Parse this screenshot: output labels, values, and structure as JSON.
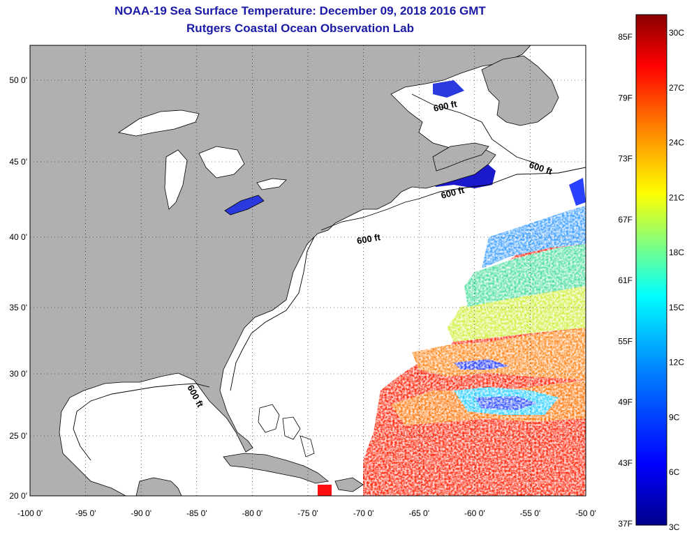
{
  "header": {
    "title": "NOAA-19 Sea Surface Temperature:  December 09, 2018 2016 GMT",
    "subtitle": "Rutgers Coastal Ocean Observation Lab"
  },
  "map": {
    "lon_range": [
      -100,
      -50
    ],
    "lat_range": [
      20,
      52
    ],
    "lon_ticks": [
      "-100 0'",
      "-95 0'",
      "-90 0'",
      "-85 0'",
      "-80 0'",
      "-75 0'",
      "-70 0'",
      "-65 0'",
      "-60 0'",
      "-55 0'",
      "-50 0'"
    ],
    "lat_ticks": [
      "50 0'",
      "45 0'",
      "40 0'",
      "35 0'",
      "30 0'",
      "25 0'",
      "20 0'"
    ],
    "depth_contour_label": "600 ft",
    "depth_contour_labels": [
      "600 ft",
      "600 ft",
      "600 ft",
      "600 ft",
      "600 ft"
    ],
    "land_color": "#b0b0b0",
    "no_data_color": "#ffffff",
    "grid": "dotted"
  },
  "colorbar": {
    "fahrenheit_ticks": [
      "85F",
      "79F",
      "73F",
      "67F",
      "61F",
      "55F",
      "49F",
      "43F",
      "37F"
    ],
    "celsius_ticks": [
      "30C",
      "27C",
      "24C",
      "21C",
      "18C",
      "15C",
      "12C",
      "9C",
      "6C",
      "3C"
    ],
    "colors": [
      "#00008b",
      "#0000ff",
      "#0080ff",
      "#00ffff",
      "#80ff80",
      "#ffff00",
      "#ff8000",
      "#ff0000",
      "#8b0000"
    ]
  }
}
